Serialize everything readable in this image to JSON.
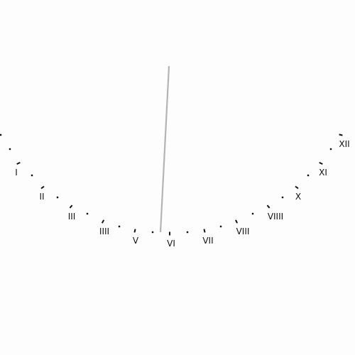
{
  "dial": {
    "background_color": "#fdfdfd",
    "gnomon_color": "#b4b4b4",
    "tick_color": "#111111",
    "hour_labels": [
      "I",
      "II",
      "III",
      "IIII",
      "V",
      "VI",
      "VII",
      "VIII",
      "VIIII",
      "X",
      "XI",
      "XII"
    ]
  }
}
